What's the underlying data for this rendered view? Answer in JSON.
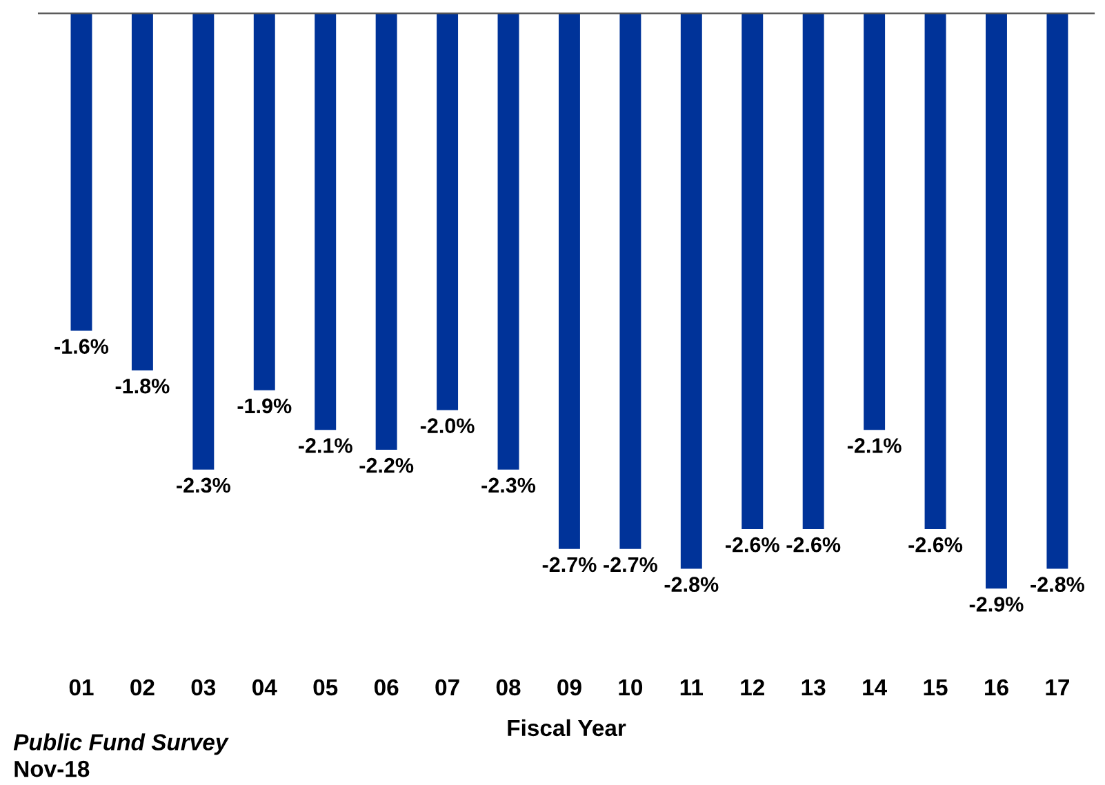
{
  "chart_data": {
    "type": "bar",
    "xlabel": "Fiscal Year",
    "categories": [
      "01",
      "02",
      "03",
      "04",
      "05",
      "06",
      "07",
      "08",
      "09",
      "10",
      "11",
      "12",
      "13",
      "14",
      "15",
      "16",
      "17"
    ],
    "values": [
      -1.6,
      -1.8,
      -2.3,
      -1.9,
      -2.1,
      -2.2,
      -2.0,
      -2.3,
      -2.7,
      -2.7,
      -2.8,
      -2.6,
      -2.6,
      -2.1,
      -2.6,
      -2.9,
      -2.8
    ],
    "value_labels": [
      "-1.6%",
      "-1.8%",
      "-2.3%",
      "-1.9%",
      "-2.1%",
      "-2.2%",
      "-2.0%",
      "-2.3%",
      "-2.7%",
      "-2.7%",
      "-2.8%",
      "-2.6%",
      "-2.6%",
      "-2.1%",
      "-2.6%",
      "-2.9%",
      "-2.8%"
    ],
    "color": "#003399",
    "tick_labels": "x",
    "grid": false,
    "legend": false,
    "annotations": [
      "Public Fund Survey",
      "Nov-18"
    ]
  }
}
